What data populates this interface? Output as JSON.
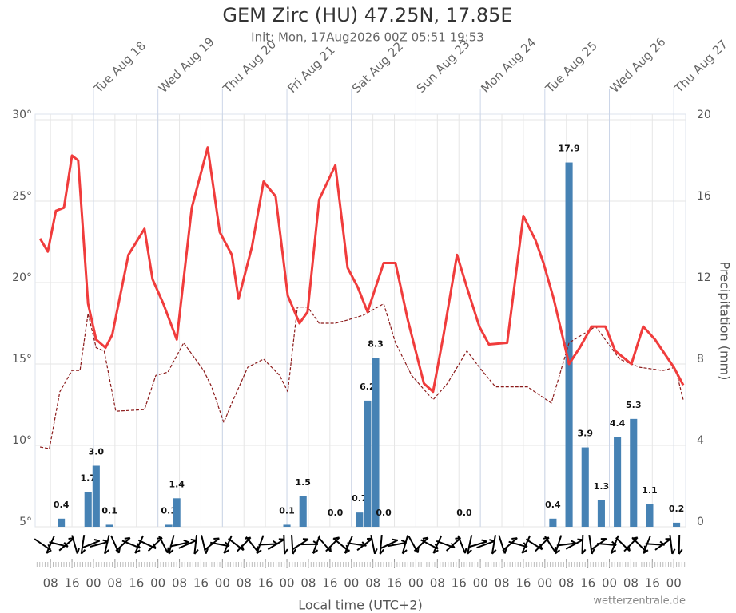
{
  "chart_data": {
    "type": "line",
    "title": "GEM Zirc (HU) 47.25N, 17.85E",
    "subtitle": "Init: Mon, 17Aug2026 00Z 05:51 19:53",
    "x_label": "Local time (UTC+2)",
    "y2_label": "Precipitation (mm)",
    "credit": "wetterzentrale.de",
    "xlim": [
      2.3,
      244.4
    ],
    "ylim": [
      5,
      30
    ],
    "y2lim": [
      0,
      20
    ],
    "grid": true,
    "yticks": [
      {
        "value": 5,
        "label": "5°"
      },
      {
        "value": 10,
        "label": "10°"
      },
      {
        "value": 15,
        "label": "15°"
      },
      {
        "value": 20,
        "label": "20°"
      },
      {
        "value": 25,
        "label": "25°"
      },
      {
        "value": 30,
        "label": "30°"
      }
    ],
    "y2ticks": [
      0,
      4,
      8,
      12,
      16,
      20
    ],
    "xticks": [
      {
        "value": 8,
        "label": "08"
      },
      {
        "value": 16,
        "label": "16"
      },
      {
        "value": 24,
        "label": "00"
      },
      {
        "value": 32,
        "label": "08"
      },
      {
        "value": 40,
        "label": "16"
      },
      {
        "value": 48,
        "label": "00"
      },
      {
        "value": 56,
        "label": "08"
      },
      {
        "value": 64,
        "label": "16"
      },
      {
        "value": 72,
        "label": "00"
      },
      {
        "value": 80,
        "label": "08"
      },
      {
        "value": 88,
        "label": "16"
      },
      {
        "value": 96,
        "label": "00"
      },
      {
        "value": 104,
        "label": "08"
      },
      {
        "value": 112,
        "label": "16"
      },
      {
        "value": 120,
        "label": "00"
      },
      {
        "value": 128,
        "label": "08"
      },
      {
        "value": 136,
        "label": "16"
      },
      {
        "value": 144,
        "label": "00"
      },
      {
        "value": 152,
        "label": "08"
      },
      {
        "value": 160,
        "label": "16"
      },
      {
        "value": 168,
        "label": "00"
      },
      {
        "value": 176,
        "label": "08"
      },
      {
        "value": 184,
        "label": "16"
      },
      {
        "value": 192,
        "label": "00"
      },
      {
        "value": 200,
        "label": "08"
      },
      {
        "value": 208,
        "label": "16"
      },
      {
        "value": 216,
        "label": "00"
      },
      {
        "value": 224,
        "label": "08"
      },
      {
        "value": 232,
        "label": "16"
      },
      {
        "value": 240,
        "label": "00"
      }
    ],
    "x2ticks": [
      {
        "value": 24,
        "label": "Tue Aug 18"
      },
      {
        "value": 48,
        "label": "Wed Aug 19"
      },
      {
        "value": 72,
        "label": "Thu Aug 20"
      },
      {
        "value": 96,
        "label": "Fri Aug 21"
      },
      {
        "value": 120,
        "label": "Sat Aug 22"
      },
      {
        "value": 144,
        "label": "Sun Aug 23"
      },
      {
        "value": 168,
        "label": "Mon Aug 24"
      },
      {
        "value": 192,
        "label": "Tue Aug 25"
      },
      {
        "value": 216,
        "label": "Wed Aug 26"
      },
      {
        "value": 240,
        "label": "Thu Aug 27"
      }
    ],
    "series": [
      {
        "type": "bar",
        "axis": "y2",
        "color": "#4682b4",
        "x": [
          12,
          22,
          25,
          30,
          52,
          55,
          96,
          102,
          114,
          123,
          126,
          129,
          132,
          162,
          195,
          201,
          207,
          213,
          219,
          225,
          231,
          241
        ],
        "values": [
          0.4,
          1.7,
          3.0,
          0.1,
          0.1,
          1.4,
          0.1,
          1.5,
          0.0,
          0.7,
          6.2,
          8.3,
          0.0,
          0.0,
          0.4,
          17.9,
          3.9,
          1.3,
          4.4,
          5.3,
          1.1,
          0.2
        ],
        "value_labels": [
          "0.4",
          "1.7",
          "3.0",
          "0.1",
          "0.1",
          "1.4",
          "0.1",
          "1.5",
          "0.0",
          "0.7",
          "6.2",
          "8.3",
          "0.0",
          "0.0",
          "0.4",
          "17.9",
          "3.9",
          "1.3",
          "4.4",
          "5.3",
          "1.1",
          "0.2"
        ]
      },
      {
        "type": "line",
        "style": "dashed",
        "color": "#8b1a1a",
        "x": [
          4.1,
          7.6,
          11.5,
          16,
          19,
          22,
          25,
          28,
          32.3,
          43,
          47.2,
          51.7,
          57.6,
          65,
          68,
          72.5,
          75.5,
          81.4,
          87.3,
          93.3,
          96.3,
          99.9,
          103.7,
          108,
          114,
          118.6,
          124.5,
          132,
          136.4,
          142.4,
          150.4,
          155.7,
          163,
          167.6,
          173.6,
          185.5,
          194.4,
          201,
          210.9,
          219.8,
          227.2,
          236,
          240.5,
          243.5
        ],
        "values": [
          9.9,
          9.8,
          13.3,
          14.6,
          14.6,
          18.1,
          16,
          15.8,
          12.1,
          12.2,
          14.3,
          14.5,
          16.3,
          14.6,
          13.6,
          11.4,
          12.6,
          14.8,
          15.3,
          14.3,
          13.3,
          18.5,
          18.5,
          17.5,
          17.5,
          17.7,
          18,
          18.7,
          16.3,
          14.3,
          12.8,
          13.8,
          15.8,
          14.8,
          13.6,
          13.6,
          12.6,
          16.3,
          17.3,
          15.3,
          14.8,
          14.6,
          14.8,
          12.8
        ]
      },
      {
        "type": "line",
        "style": "solid",
        "color": "#f03c3c",
        "x": [
          4.1,
          7,
          10,
          13,
          16,
          18.3,
          22,
          25,
          28.5,
          31,
          37,
          43,
          46,
          50,
          55,
          60.6,
          66.5,
          71,
          75.5,
          78,
          83,
          87.3,
          91.8,
          96.3,
          100.7,
          103.7,
          108,
          114,
          118.6,
          122.4,
          126,
          132,
          136.4,
          141,
          147,
          150.4,
          154.3,
          159.3,
          163,
          167.6,
          171.2,
          178,
          184,
          188.5,
          191.5,
          195.3,
          201,
          205,
          209.4,
          214.5,
          218.2,
          224.2,
          228.6,
          233,
          240,
          243.5
        ],
        "values": [
          22.7,
          21.9,
          24.4,
          24.6,
          27.8,
          27.5,
          18.7,
          16.5,
          16.0,
          16.8,
          21.7,
          23.3,
          20.2,
          18.7,
          16.5,
          24.6,
          28.3,
          23.1,
          21.7,
          19,
          22.2,
          26.2,
          25.3,
          19.2,
          17.5,
          18.2,
          25.1,
          27.2,
          20.9,
          19.7,
          18.2,
          21.2,
          21.2,
          17.7,
          13.8,
          13.3,
          16.8,
          21.7,
          19.7,
          17.3,
          16.2,
          16.3,
          24.1,
          22.6,
          21.2,
          19,
          15.0,
          16,
          17.3,
          17.3,
          15.8,
          15.0,
          17.3,
          16.5,
          14.8,
          13.7
        ]
      }
    ]
  }
}
